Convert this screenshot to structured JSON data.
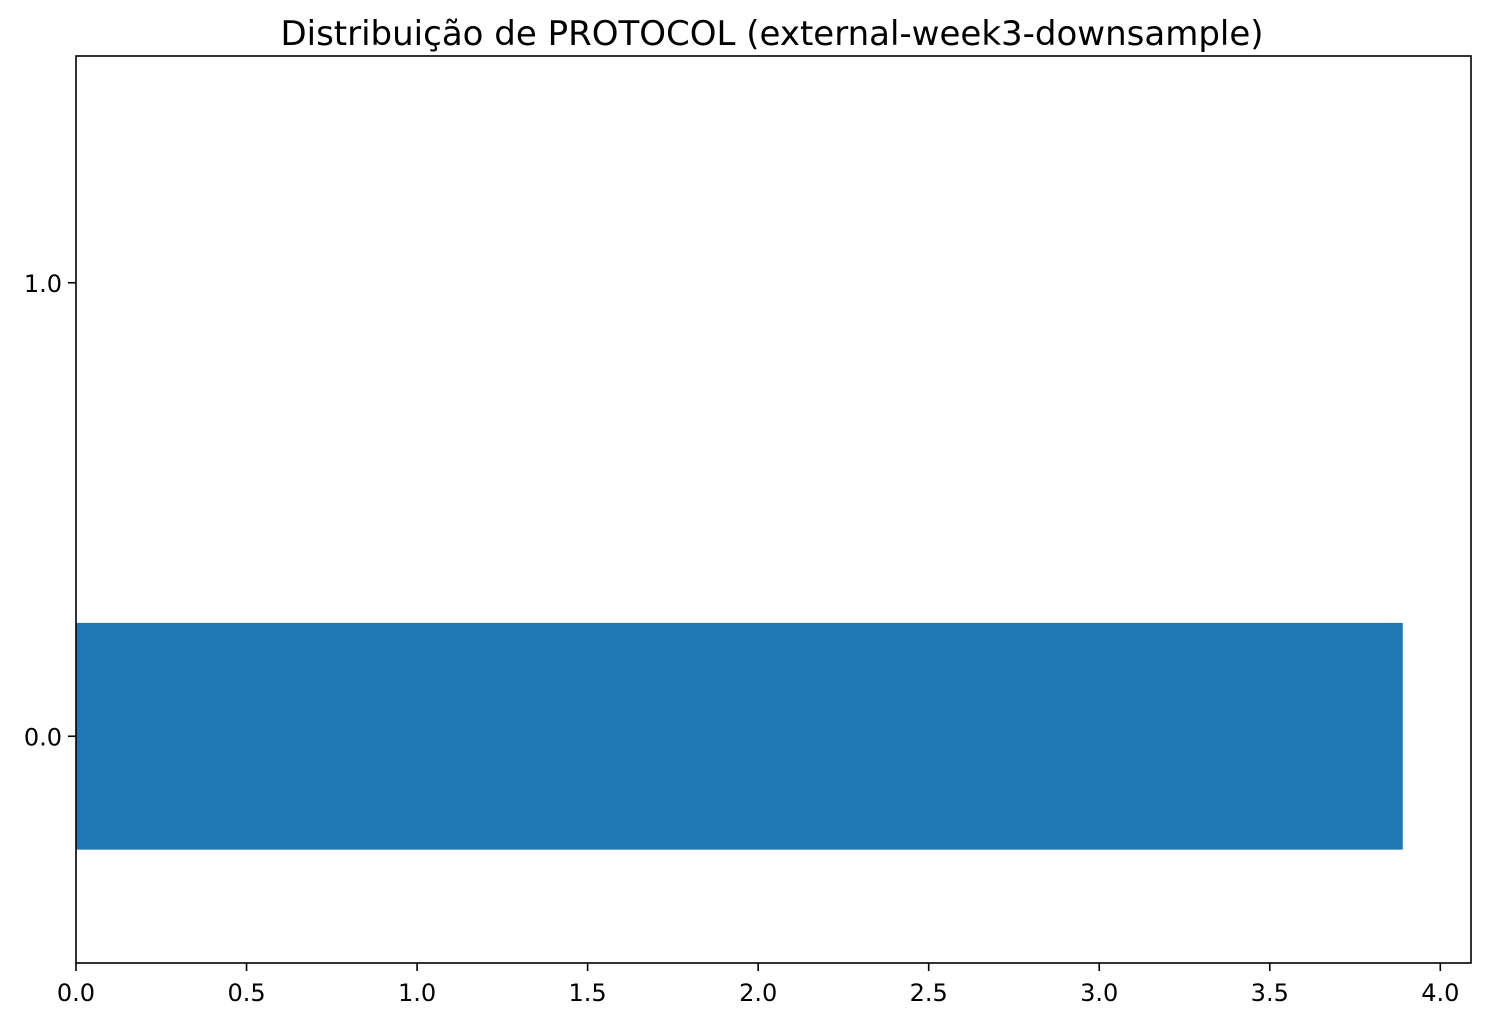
{
  "chart_data": {
    "type": "bar",
    "orientation": "horizontal",
    "title": "Distribuição de PROTOCOL (external-week3-downsample)",
    "xlabel": "",
    "ylabel": "",
    "categories": [
      "0.0",
      "1.0"
    ],
    "values": [
      3.89,
      0
    ],
    "category_positions": [
      0,
      1
    ],
    "ylim": [
      -0.5,
      1.5
    ],
    "xlim": [
      0,
      4.09
    ],
    "x_ticks": [
      "0.0",
      "0.5",
      "1.0",
      "1.5",
      "2.0",
      "2.5",
      "3.0",
      "3.5",
      "4.0"
    ],
    "y_ticks": [
      "0.0",
      "1.0"
    ],
    "bar_width": 0.5,
    "grid": false,
    "legend": "none",
    "colors": {
      "bar": "#1f77b4",
      "axes": "#000000",
      "background": "#ffffff"
    }
  }
}
